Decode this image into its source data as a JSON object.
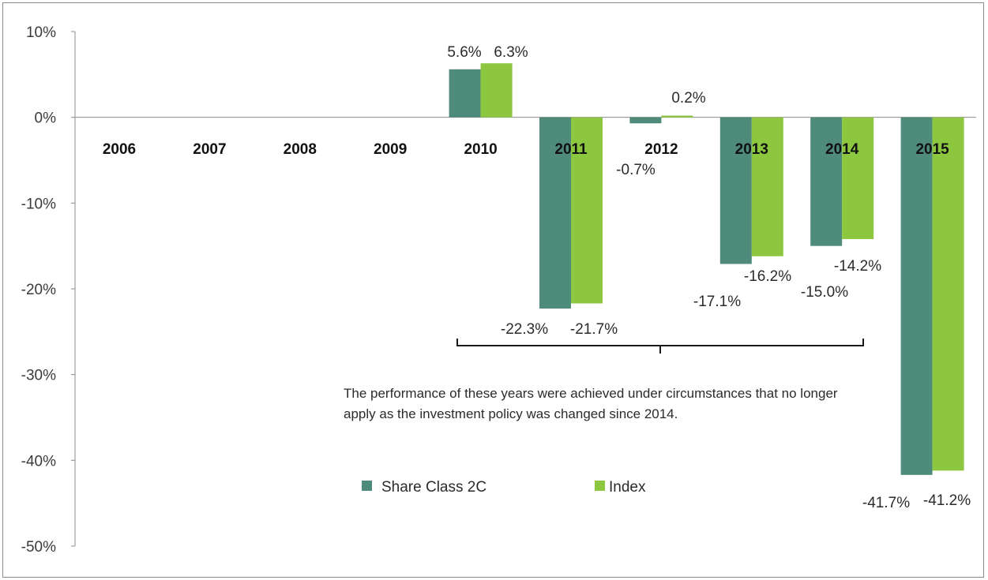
{
  "chart_data": {
    "type": "bar",
    "categories": [
      "2006",
      "2007",
      "2008",
      "2009",
      "2010",
      "2011",
      "2012",
      "2013",
      "2014",
      "2015"
    ],
    "series": [
      {
        "name": "Share Class 2C",
        "color": "#4e8b7a",
        "values": [
          null,
          null,
          null,
          null,
          5.6,
          -22.3,
          -0.7,
          -17.1,
          -15.0,
          -41.7
        ],
        "labels": [
          "",
          "",
          "",
          "",
          "5.6%",
          "-22.3%",
          "-0.7%",
          "-17.1%",
          "-15.0%",
          "-41.7%"
        ]
      },
      {
        "name": "Index",
        "color": "#8dc63f",
        "values": [
          null,
          null,
          null,
          null,
          6.3,
          -21.7,
          0.2,
          -16.2,
          -14.2,
          -41.2
        ],
        "labels": [
          "",
          "",
          "",
          "",
          "6.3%",
          "-21.7%",
          "0.2%",
          "-16.2%",
          "-14.2%",
          "-41.2%"
        ]
      }
    ],
    "yticks": [
      "10%",
      "0%",
      "-10%",
      "-20%",
      "-30%",
      "-40%",
      "-50%"
    ],
    "ylim": [
      -50,
      10
    ],
    "y_unit": "%",
    "grid": false,
    "legend_position": "bottom-center",
    "annotation": {
      "text": "The performance of these years were achieved under circumstances that no longer apply as the investment policy was changed since 2014.",
      "spans": [
        "2010",
        "2014"
      ]
    }
  }
}
